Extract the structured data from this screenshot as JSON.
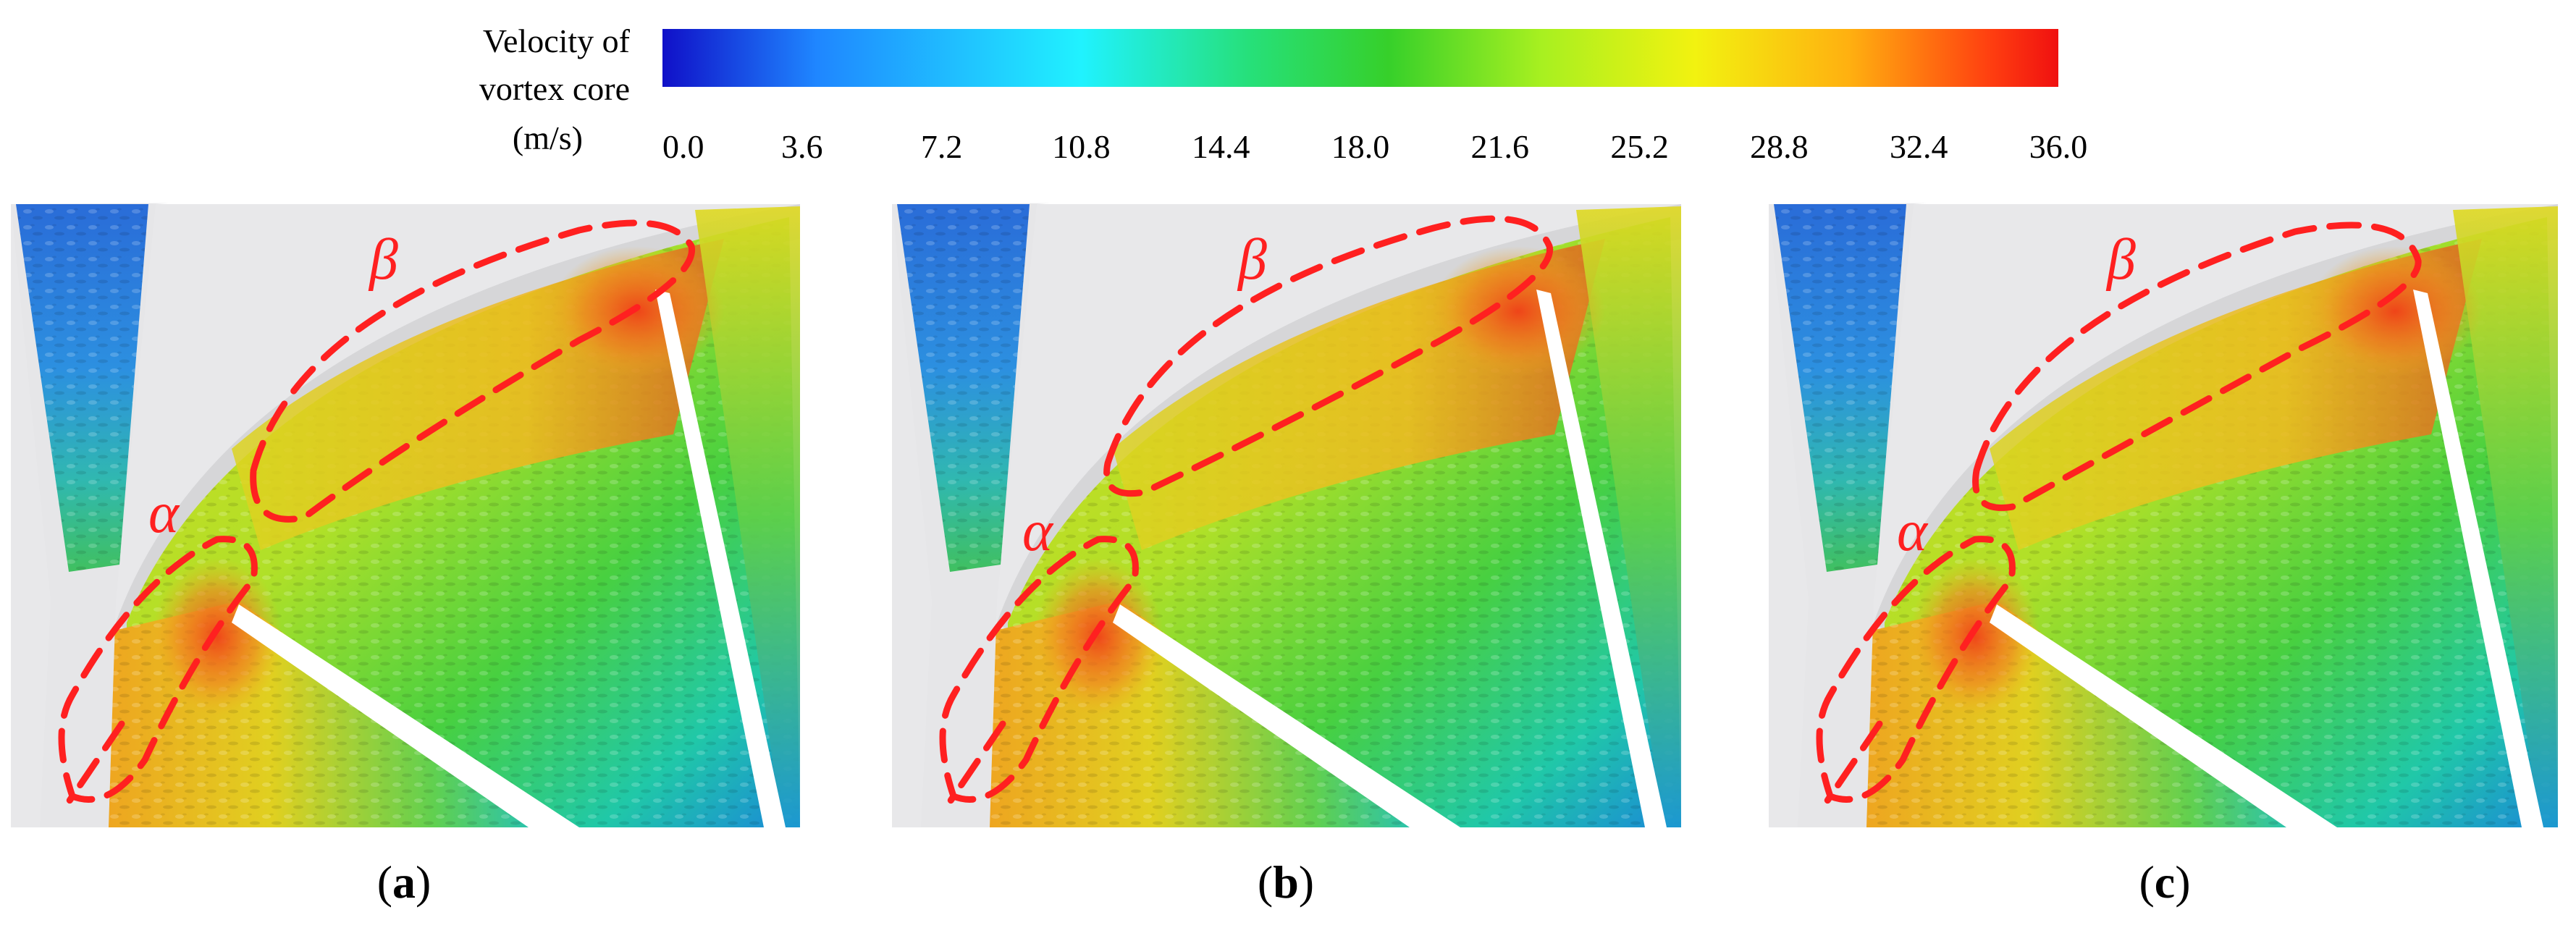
{
  "colorbar": {
    "title_lines": [
      "Velocity of",
      "vortex core",
      "(m/s)"
    ],
    "ticks": [
      "0.0",
      "3.6",
      "7.2",
      "10.8",
      "14.4",
      "18.0",
      "21.6",
      "25.2",
      "28.8",
      "32.4",
      "36.0"
    ],
    "range": [
      0.0,
      36.0
    ],
    "colors": [
      "#1010c8",
      "#1f86ff",
      "#20f2ff",
      "#26e07a",
      "#36d02a",
      "#a8f020",
      "#f2f210",
      "#ffb010",
      "#ff4010",
      "#f01010"
    ]
  },
  "panels": [
    {
      "label_open": "(",
      "label_letter": "a",
      "label_close": ")"
    },
    {
      "label_open": "(",
      "label_letter": "b",
      "label_close": ")"
    },
    {
      "label_open": "(",
      "label_letter": "c",
      "label_close": ")"
    }
  ],
  "regions": {
    "alpha": "α",
    "beta": "β"
  },
  "annotation_color": "#ff2020"
}
